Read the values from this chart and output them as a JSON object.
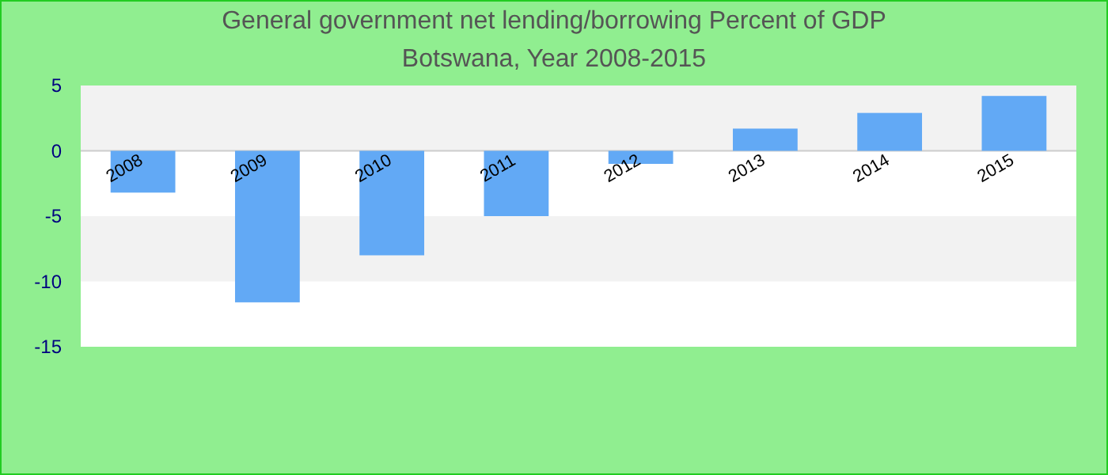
{
  "chart_data": {
    "type": "bar",
    "title": "General government net lending/borrowing  Percent of GDP",
    "subtitle": "Botswana, Year 2008-2015",
    "categories": [
      "2008",
      "2009",
      "2010",
      "2011",
      "2012",
      "2013",
      "2014",
      "2015"
    ],
    "values": [
      -3.2,
      -11.6,
      -8.0,
      -5.0,
      -1.0,
      1.7,
      2.9,
      4.2
    ],
    "color": "#62a9f5",
    "ylim": [
      -15,
      5
    ],
    "yticks": [
      -15,
      -10,
      -5,
      0,
      5
    ],
    "bands": [
      {
        "axis": "y",
        "from": 0,
        "to": 5,
        "color": "#f2f2f2"
      },
      {
        "axis": "y",
        "from": -10,
        "to": -5,
        "color": "#f2f2f2"
      }
    ]
  }
}
